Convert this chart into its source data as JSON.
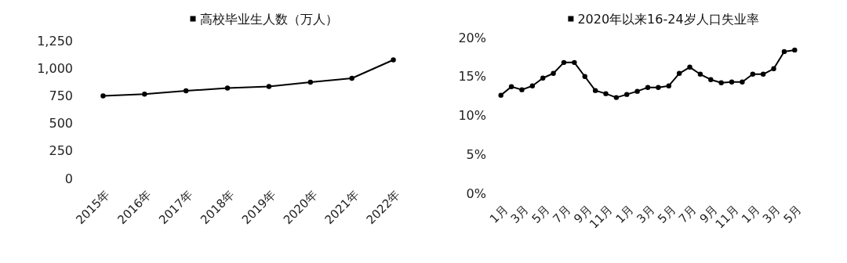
{
  "chart_data": [
    {
      "type": "line",
      "categories": [
        "2015年",
        "2016年",
        "2017年",
        "2018年",
        "2019年",
        "2020年",
        "2021年",
        "2022年"
      ],
      "series": [
        {
          "name": "高校毕业生人数（万人）",
          "color": "#000000",
          "values": [
            749,
            765,
            795,
            820,
            834,
            874,
            909,
            1076
          ]
        }
      ],
      "ylim": [
        0,
        1250
      ],
      "yticks": [
        0,
        250,
        500,
        750,
        {
          "value": 1000,
          "label": "1,000"
        },
        {
          "value": 1250,
          "label": "1,250"
        }
      ],
      "grid": false,
      "legend": "top",
      "marker": "circle",
      "line_style": "solid"
    },
    {
      "type": "line",
      "categories": [
        "1月",
        null,
        "3月",
        null,
        "5月",
        null,
        "7月",
        null,
        "9月",
        null,
        "11月",
        null,
        "1月",
        null,
        "3月",
        null,
        "5月",
        null,
        "7月",
        null,
        "9月",
        null,
        "11月",
        null,
        "1月",
        null,
        "3月",
        null,
        "5月"
      ],
      "series": [
        {
          "name": "2020年以来16-24岁人口失业率",
          "color": "#000000",
          "values": [
            12.6,
            13.7,
            13.3,
            13.8,
            14.8,
            15.4,
            16.8,
            16.8,
            15.0,
            13.2,
            12.8,
            12.3,
            12.7,
            13.1,
            13.6,
            13.6,
            13.8,
            15.4,
            16.2,
            15.3,
            14.6,
            14.2,
            14.3,
            14.3,
            15.3,
            15.3,
            16.0,
            18.2,
            18.4
          ]
        }
      ],
      "ylim": [
        0,
        20
      ],
      "yticks": [
        {
          "value": 0,
          "label": "0%"
        },
        {
          "value": 5,
          "label": "5%"
        },
        {
          "value": 10,
          "label": "10%"
        },
        {
          "value": 15,
          "label": "15%"
        },
        {
          "value": 20,
          "label": "20%"
        }
      ],
      "grid": false,
      "legend": "top",
      "marker": "circle",
      "line_style": "solid"
    }
  ]
}
